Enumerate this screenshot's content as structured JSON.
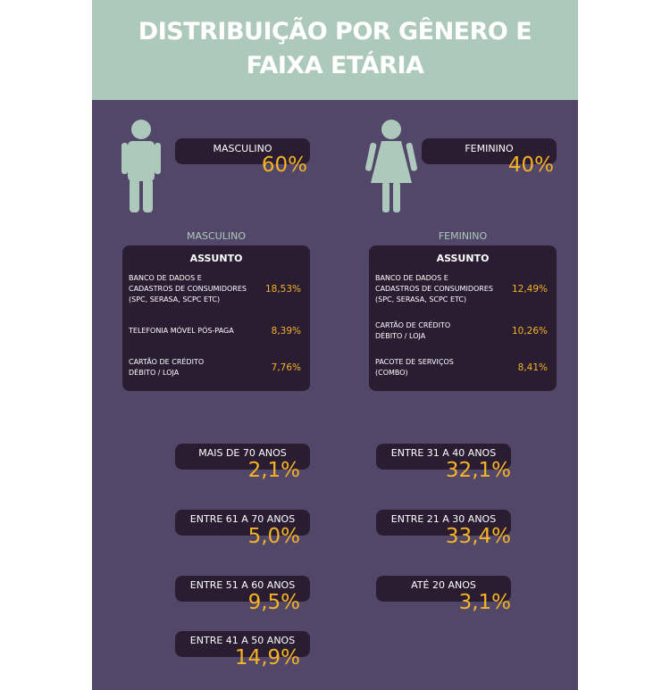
{
  "header": {
    "title_lines": [
      "DISTRIBUIÇÃO POR GÊNERO E",
      "FAIXA ETÁRIA"
    ]
  },
  "gender": [
    {
      "label": "MASCULINO",
      "value": "60%"
    },
    {
      "label": "FEMININO",
      "value": "40%"
    }
  ],
  "tables": [
    {
      "heading": "MASCULINO",
      "header": "ASSUNTO",
      "rows": [
        [
          "BANCO DE DADOS E\nCADASTROS DE CONSUMIDORES\n(SPC, SERASA, SCPC ETC)",
          "18,53%"
        ],
        [
          "TELEFONIA MÓVEL PÓS-PAGA",
          "8,39%"
        ],
        [
          "CARTÃO DE CRÉDITO\nDÉBITO / LOJA",
          "7,76%"
        ]
      ]
    },
    {
      "heading": "FEMININO",
      "header": "ASSUNTO",
      "rows": [
        [
          "BANCO DE DADOS E\nCADASTROS DE CONSUMIDORES\n(SPC, SERASA, SCPC ETC)",
          "12,49%"
        ],
        [
          "CARTÃO DE CRÉDITO\nDÉBITO / LOJA",
          "10,26%"
        ],
        [
          "PACOTE DE SERVIÇOS\n(COMBO)",
          "8,41%"
        ]
      ]
    }
  ],
  "age_groups": [
    [
      {
        "label": "MAIS DE 70 ANOS",
        "value": "2,1%"
      },
      {
        "label": "ENTRE 61 A 70 ANOS",
        "value": "5,0%"
      },
      {
        "label": "ENTRE 51 A 60 ANOS",
        "value": "9,5%"
      },
      {
        "label": "ENTRE 41 A 50 ANOS",
        "value": "14,9%"
      }
    ],
    [
      {
        "label": "ENTRE 31 A 40 ANOS",
        "value": "32,1%"
      },
      {
        "label": "ENTRE 21 A 30 ANOS",
        "value": "33,4%"
      },
      {
        "label": "ATÉ 20 ANOS",
        "value": "3,1%"
      }
    ]
  ]
}
